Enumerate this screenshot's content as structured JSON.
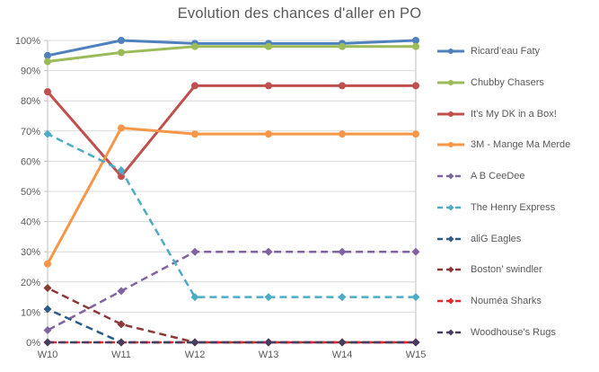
{
  "title": "Evolution des chances d'aller en PO",
  "chart_data": {
    "type": "line",
    "title": "Evolution des chances d'aller en PO",
    "xlabel": "",
    "ylabel": "",
    "x_categories": [
      "W10",
      "W11",
      "W12",
      "W13",
      "W14",
      "W15"
    ],
    "y_tick_labels": [
      "0%",
      "10%",
      "20%",
      "30%",
      "40%",
      "50%",
      "60%",
      "70%",
      "80%",
      "90%",
      "100%"
    ],
    "ylim": [
      0,
      100
    ],
    "y_tick_step": 10,
    "grid": true,
    "legend_position": "right",
    "background": "#ffffff",
    "grid_color": "#d9d9d9",
    "axis_color": "#bfbfbf",
    "text_color": "#595959",
    "series": [
      {
        "name": "Ricard’eau Faty",
        "color": "#4F81BD",
        "style": "solid",
        "marker": "circle",
        "values": [
          95,
          100,
          99,
          99,
          99,
          100
        ]
      },
      {
        "name": "Chubby Chasers",
        "color": "#9BBB59",
        "style": "solid",
        "marker": "circle",
        "values": [
          93,
          96,
          98,
          98,
          98,
          98
        ]
      },
      {
        "name": "It’s My DK in a Box!",
        "color": "#C0504D",
        "style": "solid",
        "marker": "circle",
        "values": [
          83,
          55,
          85,
          85,
          85,
          85
        ]
      },
      {
        "name": "3M - Mange Ma Merde",
        "color": "#F79646",
        "style": "solid",
        "marker": "circle",
        "values": [
          26,
          71,
          69,
          69,
          69,
          69
        ]
      },
      {
        "name": "A B CeeDee",
        "color": "#8064A2",
        "style": "dashed",
        "marker": "diamond",
        "values": [
          4,
          17,
          30,
          30,
          30,
          30
        ]
      },
      {
        "name": "The Henry Express",
        "color": "#4BACC6",
        "style": "dashed",
        "marker": "diamond",
        "values": [
          69,
          57,
          15,
          15,
          15,
          15
        ]
      },
      {
        "name": "aliG Eagles",
        "color": "#2E5B88",
        "style": "dashed",
        "marker": "diamond",
        "values": [
          11,
          0,
          0,
          0,
          0,
          0
        ]
      },
      {
        "name": "Boston’ swindler",
        "color": "#8C3836",
        "style": "dashed",
        "marker": "diamond",
        "values": [
          18,
          6,
          0,
          0,
          0,
          0
        ]
      },
      {
        "name": "Nouméa Sharks",
        "color": "#E8282D",
        "style": "dashed",
        "marker": "diamond",
        "values": [
          0,
          0,
          0,
          0,
          0,
          0
        ]
      },
      {
        "name": "Woodhouse's Rugs",
        "color": "#463D5F",
        "style": "dashed",
        "marker": "diamond",
        "values": [
          0,
          0,
          0,
          0,
          0,
          0
        ]
      }
    ]
  }
}
